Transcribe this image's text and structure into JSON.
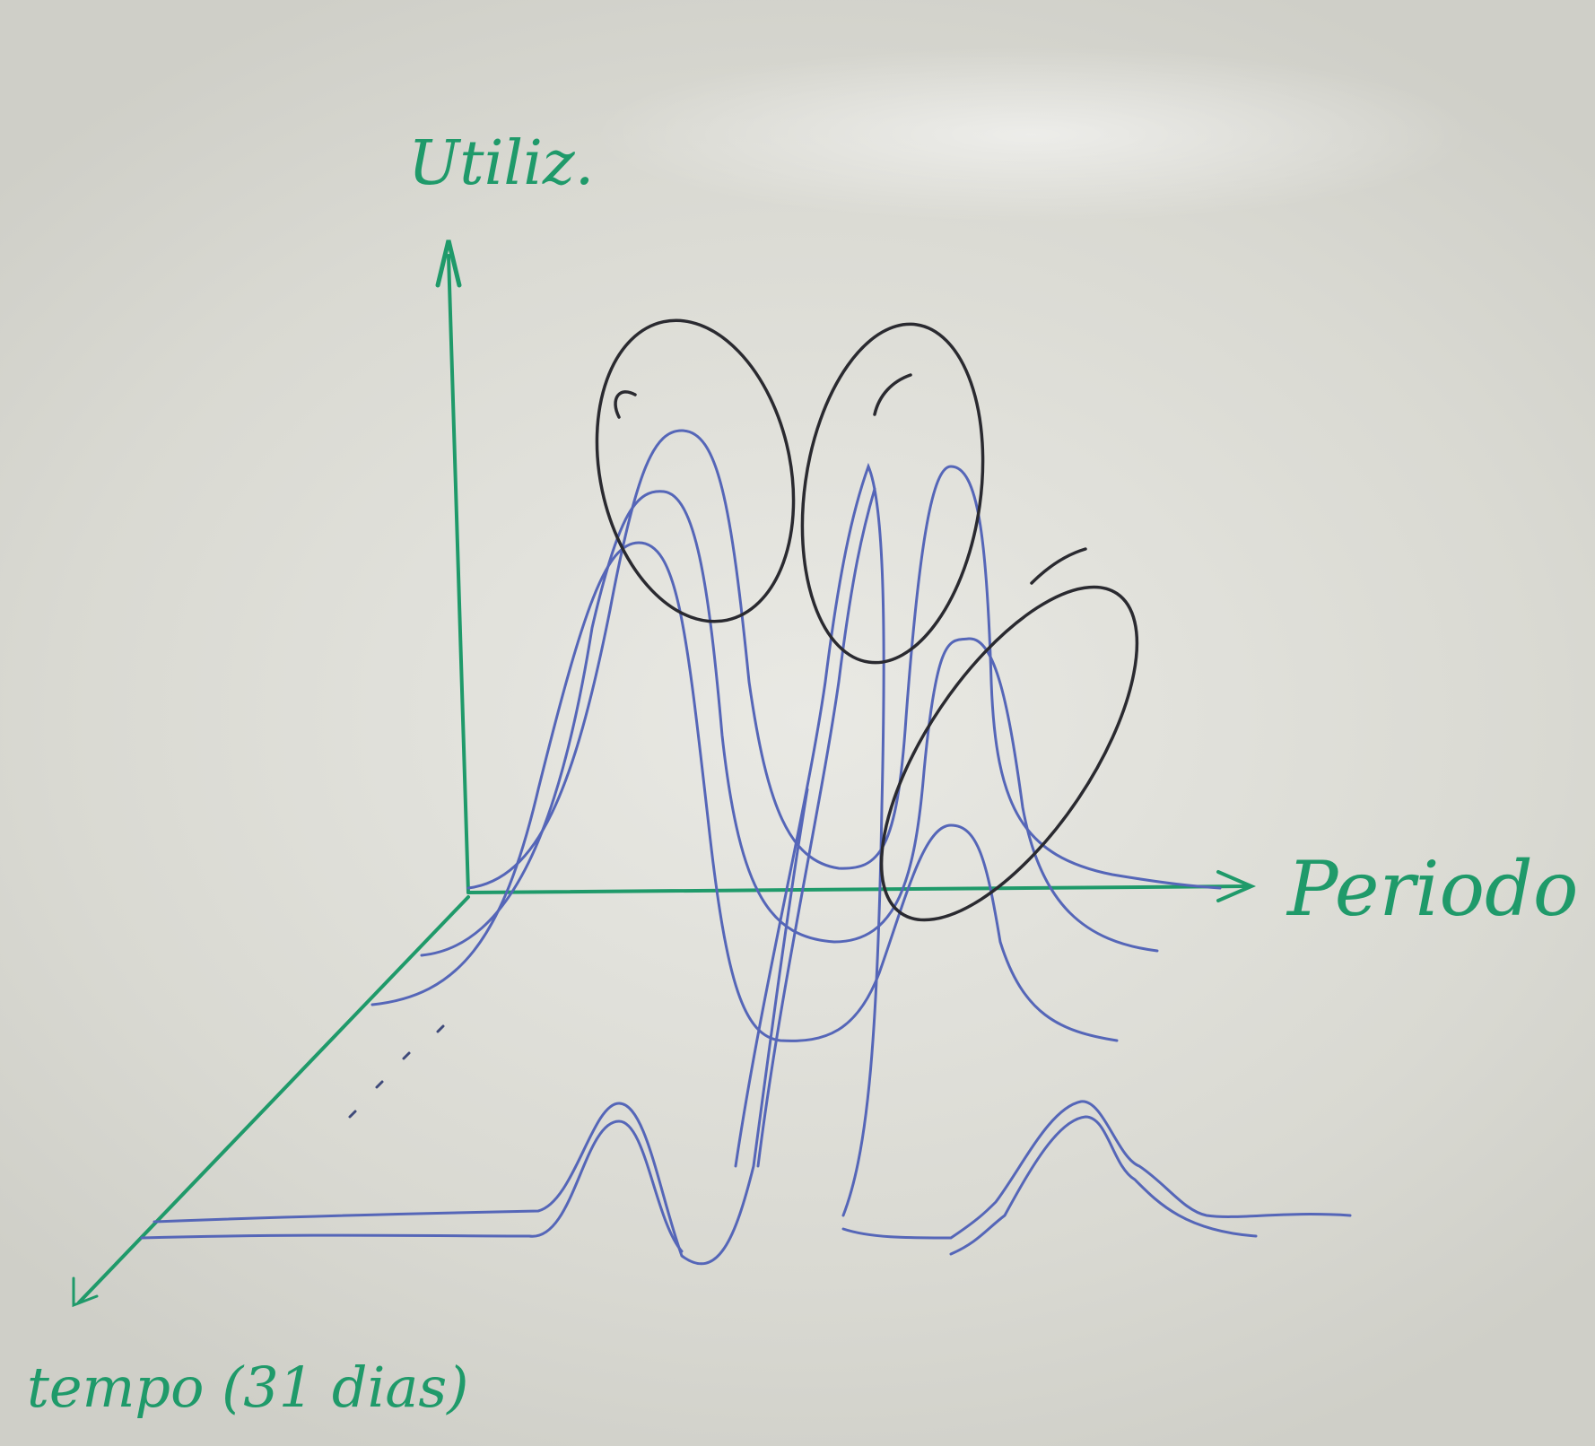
{
  "labels": {
    "y_axis": "Utiliz.",
    "x_axis": "Periodo",
    "z_axis": "tempo (31 dias)"
  },
  "colors": {
    "axis_green": "#1f9a6a",
    "curve_blue": "#5566b8",
    "ellipse_black": "#2a2a30",
    "board": "#e4e4de"
  }
}
